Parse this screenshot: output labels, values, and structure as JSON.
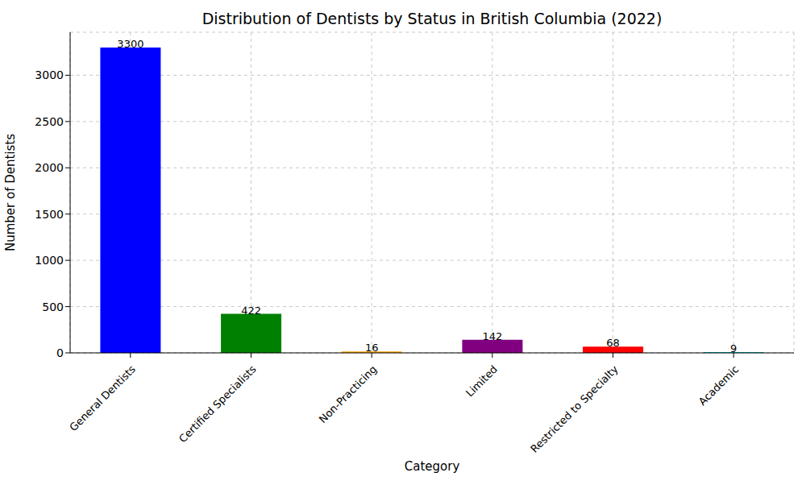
{
  "chart_data": {
    "type": "bar",
    "title": "Distribution of Dentists by Status in British Columbia (2022)",
    "x_label": "Category",
    "y_label": "Number of Dentists",
    "categories": [
      "General Dentists",
      "Certified Specialists",
      "Non-Practicing",
      "Limited",
      "Restricted to Specialty",
      "Academic"
    ],
    "values": [
      3300,
      422,
      16,
      142,
      68,
      9
    ],
    "colors": [
      "#0000ff",
      "#008000",
      "#ffa500",
      "#800080",
      "#ff0000",
      "#00bfbf"
    ],
    "ylim": [
      0,
      3465
    ],
    "yticks": [
      0,
      500,
      1000,
      1500,
      2000,
      2500,
      3000
    ],
    "grid": true,
    "data_labels": true
  }
}
